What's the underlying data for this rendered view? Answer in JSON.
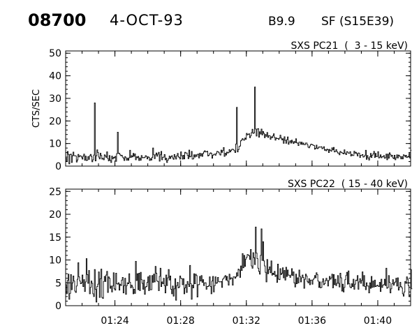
{
  "header": {
    "event_id": "08700",
    "date": "4-OCT-93",
    "goes_class": "B9.9",
    "flare_location": "SF (S15E39)"
  },
  "chart_data": [
    {
      "type": "line",
      "title": "SXS PC21  (  3 - 15 keV)",
      "ylabel": "CTS/SEC",
      "xlabel": "",
      "xlim": [
        "01:21:00",
        "01:42:00"
      ],
      "ylim": [
        0,
        51
      ],
      "yticks": [
        0,
        10,
        20,
        30,
        40,
        50
      ],
      "xticks": [
        "01:24",
        "01:28",
        "01:32",
        "01:36",
        "01:40"
      ],
      "grid": false,
      "series": [
        {
          "x_start": "01:21:00",
          "x_step_s": 3,
          "values": [
            3.5,
            2.1,
            6.5,
            5.2,
            1.0,
            5.1,
            5.3,
            1.6,
            4.6,
            6.2,
            4.6,
            4.6,
            4.5,
            1.8,
            2.7,
            5.2,
            4.1,
            4.6,
            4.5,
            4.0,
            3.1,
            4.4,
            5.3,
            2.6,
            4.4,
            2.5,
            2.6,
            4.2,
            3.0,
            4.6,
            5.2,
            4.3,
            1.9,
            2.8,
            4.9,
            28.0,
            2.3,
            4.6,
            7.2,
            6.0,
            4.0,
            3.2,
            5.7,
            4.7,
            3.1,
            3.5,
            2.8,
            5.0,
            4.5,
            3.9,
            6.3,
            3.3,
            2.3,
            4.7,
            2.6,
            1.6,
            4.4,
            3.2,
            3.9,
            3.6,
            4.3,
            2.1,
            5.5,
            15.0,
            5.6,
            5.7,
            5.0,
            4.6,
            4.8,
            4.0,
            3.5,
            2.5,
            4.2,
            3.7,
            2.6,
            3.5,
            2.6,
            3.7,
            7.0,
            3.8,
            4.6,
            4.1,
            5.6,
            4.4,
            5.4,
            2.8,
            4.1,
            3.7,
            4.3,
            2.5,
            3.6,
            2.6,
            4.7,
            3.7,
            3.8,
            3.7,
            3.9,
            4.6,
            4.3,
            3.2,
            4.1,
            3.9,
            2.5,
            3.3,
            2.7,
            3.9,
            8.0,
            5.0,
            3.3,
            5.0,
            5.8,
            4.4,
            5.3,
            6.1,
            2.2,
            5.0,
            6.5,
            2.8,
            3.9,
            4.0,
            5.1,
            2.8,
            3.5,
            1.6,
            2.6,
            3.3,
            4.4,
            3.4,
            4.2,
            4.6,
            3.6,
            3.0,
            5.1,
            4.1,
            3.1,
            4.6,
            5.6,
            4.1,
            3.8,
            3.1,
            6.3,
            4.6,
            3.1,
            4.8,
            3.2,
            6.1,
            5.8,
            5.8,
            4.8,
            3.3,
            7.1,
            4.1,
            4.3,
            6.5,
            3.1,
            3.2,
            5.0,
            4.0,
            5.0,
            4.3,
            5.2,
            5.3,
            3.6,
            5.7,
            4.5,
            5.5,
            4.3,
            5.6,
            6.3,
            6.8,
            6.3,
            6.3,
            6.6,
            4.5,
            4.8,
            5.5,
            5.9,
            5.6,
            3.5,
            4.8,
            5.2,
            5.3,
            4.8,
            5.6,
            6.5,
            6.4,
            6.1,
            5.3,
            4.9,
            7.1,
            6.1,
            6.9,
            8.2,
            4.3,
            5.7,
            4.9,
            6.2,
            5.8,
            6.0,
            7.3,
            6.3,
            6.9,
            7.4,
            7.5,
            7.2,
            6.8,
            6.0,
            9.8,
            26.0,
            6.3,
            7.3,
            8.7,
            8.9,
            11.2,
            11.6,
            12.2,
            11.6,
            11.5,
            12.4,
            11.9,
            14.5,
            13.8,
            14.1,
            14.3,
            12.6,
            13.4,
            14.8,
            16.3,
            14.5,
            14.7,
            35.0,
            16.4,
            13.3,
            16.4,
            16.6,
            12.8,
            15.2,
            14.2,
            16.4,
            13.8,
            15.3,
            14.5,
            12.6,
            14.0,
            13.2,
            14.9,
            12.7,
            13.5,
            13.5,
            11.9,
            13.0,
            12.6,
            13.4,
            14.3,
            12.7,
            11.5,
            12.5,
            12.2,
            12.2,
            11.8,
            12.4,
            13.7,
            12.4,
            11.6,
            12.1,
            10.1,
            13.0,
            11.4,
            10.1,
            11.7,
            12.9,
            9.7,
            10.6,
            11.2,
            10.2,
            11.5,
            10.7,
            10.0,
            10.9,
            10.4,
            12.1,
            10.3,
            10.2,
            9.1,
            10.6,
            10.6,
            9.7,
            10.6,
            9.6,
            10.2,
            9.5,
            9.5,
            10.2,
            10.2,
            9.4,
            8.4,
            8.1,
            8.9,
            9.6,
            9.7,
            9.4,
            9.3,
            9.1,
            7.5,
            7.9,
            9.3,
            7.7,
            8.0,
            8.5,
            8.4,
            8.4,
            8.6,
            7.7,
            8.0,
            8.6,
            7.0,
            7.3,
            6.8,
            7.5,
            7.3,
            6.0,
            7.4,
            6.9,
            6.6,
            8.1,
            7.2,
            8.3,
            6.3,
            6.5,
            7.3,
            6.4,
            5.8,
            5.8,
            5.0,
            6.5,
            6.1,
            5.9,
            5.7,
            5.4,
            7.2,
            5.7,
            5.1,
            6.4,
            6.2,
            5.7,
            5.7,
            6.4,
            4.5,
            5.2,
            4.7,
            4.7,
            6.6,
            5.7,
            6.1,
            5.5,
            4.5,
            5.8,
            5.7,
            3.8,
            4.8,
            4.8,
            5.1,
            4.0,
            4.2,
            4.8,
            7.0,
            3.0,
            4.7,
            3.6,
            2.7,
            4.1,
            5.6,
            3.8,
            4.8,
            5.4,
            6.5,
            3.8,
            5.6,
            4.2,
            4.3,
            6.4,
            3.6,
            4.0,
            5.0,
            3.7,
            4.2,
            4.1,
            4.7,
            3.5,
            3.7,
            5.3,
            2.8,
            5.3,
            3.5,
            5.9,
            5.2,
            4.3,
            4.8,
            3.7,
            3.3,
            4.8,
            2.8,
            3.7,
            5.0,
            3.6,
            4.9,
            4.6,
            4.1,
            3.2,
            4.2,
            3.2,
            5.0,
            4.8,
            4.1,
            4.8,
            3.8,
            4.1,
            4.3,
            5.6,
            3.5,
            7.0
          ]
        }
      ]
    },
    {
      "type": "line",
      "title": "SXS PC22  ( 15 - 40 keV)",
      "ylabel": "",
      "xlabel": "",
      "xlim": [
        "01:21:00",
        "01:42:00"
      ],
      "ylim": [
        0,
        25.5
      ],
      "yticks": [
        0,
        5,
        10,
        15,
        20,
        25
      ],
      "xticks": [
        "01:24",
        "01:28",
        "01:32",
        "01:36",
        "01:40"
      ],
      "grid": false,
      "series": [
        {
          "x_start": "01:21:00",
          "x_step_s": 3,
          "values": [
            4.6,
            2.6,
            5.5,
            6.9,
            1.4,
            2.7,
            6.8,
            3.5,
            5.0,
            6.5,
            5.4,
            3.2,
            2.9,
            4.3,
            5.8,
            9.4,
            6.3,
            5.4,
            4.8,
            5.0,
            6.7,
            4.2,
            5.7,
            3.1,
            5.2,
            10.3,
            6.8,
            4.9,
            7.7,
            2.6,
            4.0,
            5.4,
            4.9,
            2.6,
            2.0,
            7.9,
            3.6,
            0.8,
            4.2,
            4.7,
            7.4,
            1.8,
            5.9,
            8.0,
            1.8,
            1.6,
            5.3,
            6.4,
            5.3,
            6.7,
            7.5,
            2.9,
            6.3,
            6.0,
            3.8,
            4.3,
            3.0,
            4.3,
            7.2,
            3.7,
            3.4,
            7.1,
            4.8,
            4.7,
            5.0,
            3.4,
            4.7,
            4.4,
            5.6,
            6.2,
            2.8,
            4.4,
            6.0,
            2.5,
            4.4,
            5.0,
            4.8,
            7.0,
            5.1,
            3.9,
            4.5,
            4.1,
            2.6,
            3.6,
            2.7,
            9.7,
            5.5,
            7.0,
            3.5,
            7.1,
            3.3,
            7.3,
            5.7,
            4.9,
            3.6,
            5.6,
            2.5,
            4.1,
            4.2,
            5.1,
            6.3,
            3.3,
            6.6,
            3.5,
            3.5,
            6.6,
            5.1,
            6.9,
            5.2,
            8.6,
            7.1,
            5.4,
            5.3,
            3.3,
            6.4,
            8.2,
            4.2,
            5.2,
            4.8,
            6.0,
            4.4,
            2.8,
            6.7,
            4.4,
            6.1,
            7.9,
            5.6,
            6.5,
            3.6,
            2.6,
            4.3,
            2.1,
            3.7,
            5.9,
            1.2,
            4.4,
            5.1,
            3.9,
            4.1,
            6.5,
            6.0,
            5.9,
            4.6,
            5.9,
            2.6,
            3.9,
            4.6,
            2.9,
            5.3,
            4.7,
            4.2,
            8.8,
            4.8,
            1.4,
            4.5,
            3.9,
            7.0,
            4.8,
            6.9,
            6.6,
            1.9,
            4.6,
            4.6,
            6.4,
            5.4,
            6.6,
            5.1,
            5.7,
            4.4,
            5.0,
            5.0,
            3.6,
            4.2,
            4.2,
            4.4,
            6.3,
            4.2,
            2.6,
            5.4,
            6.4,
            3.0,
            4.4,
            6.3,
            4.9,
            5.0,
            6.2,
            5.3,
            5.2,
            5.2,
            5.3,
            4.0,
            5.8,
            6.0,
            6.3,
            6.6,
            5.6,
            6.4,
            5.4,
            4.5,
            6.9,
            5.8,
            6.1,
            6.0,
            4.5,
            6.3,
            6.3,
            6.0,
            6.3,
            7.2,
            6.5,
            8.0,
            7.8,
            6.2,
            8.7,
            7.7,
            11.4,
            8.3,
            11.0,
            8.6,
            10.2,
            10.6,
            11.2,
            11.1,
            10.9,
            10.1,
            12.3,
            8.7,
            8.2,
            11.6,
            10.5,
            9.0,
            17.2,
            11.5,
            10.3,
            8.2,
            7.5,
            6.9,
            11.0,
            16.8,
            9.9,
            14.0,
            9.8,
            8.7,
            7.3,
            5.2,
            10.1,
            7.0,
            7.9,
            8.5,
            7.2,
            9.8,
            6.7,
            7.1,
            6.8,
            7.5,
            6.4,
            6.7,
            5.1,
            9.1,
            5.8,
            5.7,
            8.1,
            6.8,
            7.1,
            8.3,
            6.1,
            7.7,
            5.6,
            8.4,
            6.4,
            7.8,
            6.7,
            6.6,
            6.2,
            6.7,
            8.1,
            6.6,
            7.4,
            5.0,
            4.1,
            6.9,
            4.8,
            6.1,
            5.0,
            7.8,
            6.4,
            5.2,
            6.1,
            6.7,
            6.2,
            3.8,
            5.8,
            6.9,
            6.5,
            5.3,
            5.0,
            5.9,
            4.6,
            5.6,
            5.6,
            4.7,
            5.7,
            6.0,
            6.6,
            6.1,
            7.2,
            6.8,
            5.4,
            4.0,
            5.2,
            3.9,
            4.0,
            5.2,
            5.9,
            4.6,
            4.8,
            5.5,
            6.0,
            5.5,
            4.3,
            5.5,
            6.4,
            5.8,
            6.1,
            6.9,
            3.9,
            6.8,
            4.6,
            5.8,
            4.4,
            4.9,
            6.6,
            4.9,
            4.1,
            7.1,
            6.1,
            3.2,
            4.7,
            3.0,
            4.0,
            5.7,
            6.6,
            7.3,
            4.7,
            7.6,
            4.8,
            4.1,
            3.9,
            4.8,
            4.2,
            5.8,
            3.6,
            4.7,
            5.6,
            5.5,
            6.6,
            3.6,
            5.2,
            5.9,
            4.9,
            5.5,
            7.4,
            4.3,
            6.6,
            4.2,
            3.5,
            5.0,
            4.3,
            4.3,
            2.8,
            5.0,
            3.8,
            6.4,
            4.0,
            5.4,
            4.1,
            5.6,
            4.2,
            4.3,
            4.5,
            4.3,
            4.2,
            5.1,
            3.1,
            5.8,
            4.0,
            4.5,
            4.6,
            5.8,
            4.4,
            8.2,
            3.8,
            4.0,
            6.6,
            5.1,
            2.8,
            3.7,
            4.8,
            5.7,
            4.5,
            5.0,
            5.2,
            6.0,
            4.3,
            6.1,
            3.4,
            4.0,
            5.1,
            4.2,
            3.9,
            2.6,
            2.1,
            3.0,
            5.3,
            4.9,
            6.3,
            5.8,
            4.4,
            2.0,
            2.4,
            7.9,
            3.7
          ]
        }
      ]
    }
  ]
}
